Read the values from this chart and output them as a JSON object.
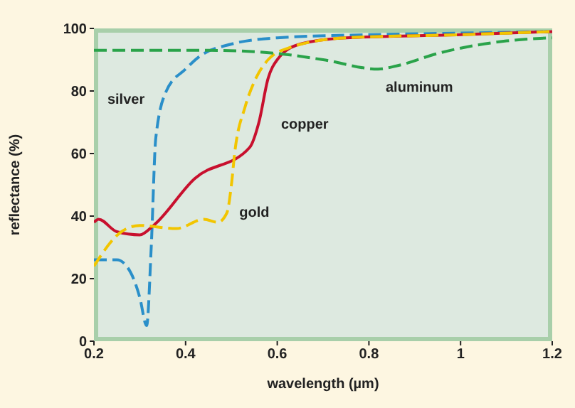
{
  "chart_data": {
    "type": "line",
    "xlabel": "wavelength (µm)",
    "ylabel": "reflectance (%)",
    "xlim": [
      0.2,
      1.2
    ],
    "xticks": [
      0.2,
      0.4,
      0.6,
      0.8,
      1,
      1.2
    ],
    "ylim": [
      0,
      100
    ],
    "yticks": [
      0,
      20,
      40,
      60,
      80,
      100
    ],
    "grid": false,
    "legend": false,
    "marker": "none",
    "series": [
      {
        "name": "silver",
        "color": "#2a8fc9",
        "line_style": "dashed",
        "x": [
          0.2,
          0.25,
          0.28,
          0.3,
          0.315,
          0.325,
          0.335,
          0.358,
          0.4,
          0.43,
          0.5,
          0.6,
          0.8,
          1.0,
          1.2
        ],
        "values": [
          26,
          26,
          22,
          14,
          5,
          30,
          65,
          80,
          87,
          91,
          95,
          97,
          98,
          98.5,
          99
        ]
      },
      {
        "name": "copper",
        "color": "#c8102e",
        "line_style": "solid",
        "x": [
          0.2,
          0.21,
          0.25,
          0.3,
          0.33,
          0.42,
          0.54,
          0.56,
          0.58,
          0.6,
          0.65,
          0.75,
          1.0,
          1.2
        ],
        "values": [
          38,
          39,
          35,
          34,
          37,
          52,
          62,
          70,
          84,
          90,
          95,
          97,
          98,
          99
        ]
      },
      {
        "name": "gold",
        "color": "#f2c500",
        "line_style": "dashed",
        "x": [
          0.2,
          0.26,
          0.3,
          0.38,
          0.44,
          0.47,
          0.49,
          0.5,
          0.507,
          0.53,
          0.55,
          0.58,
          0.63,
          0.75,
          1.0,
          1.2
        ],
        "values": [
          24,
          35,
          37,
          36,
          39,
          38,
          41,
          50,
          60,
          75,
          83,
          90,
          94,
          97,
          98,
          99
        ]
      },
      {
        "name": "aluminum",
        "color": "#2aa34a",
        "line_style": "dashed",
        "x": [
          0.2,
          0.45,
          0.6,
          0.7,
          0.82,
          0.86,
          0.95,
          1.1,
          1.2
        ],
        "values": [
          93,
          93,
          92,
          90,
          87,
          88,
          92,
          96,
          97
        ]
      }
    ]
  }
}
